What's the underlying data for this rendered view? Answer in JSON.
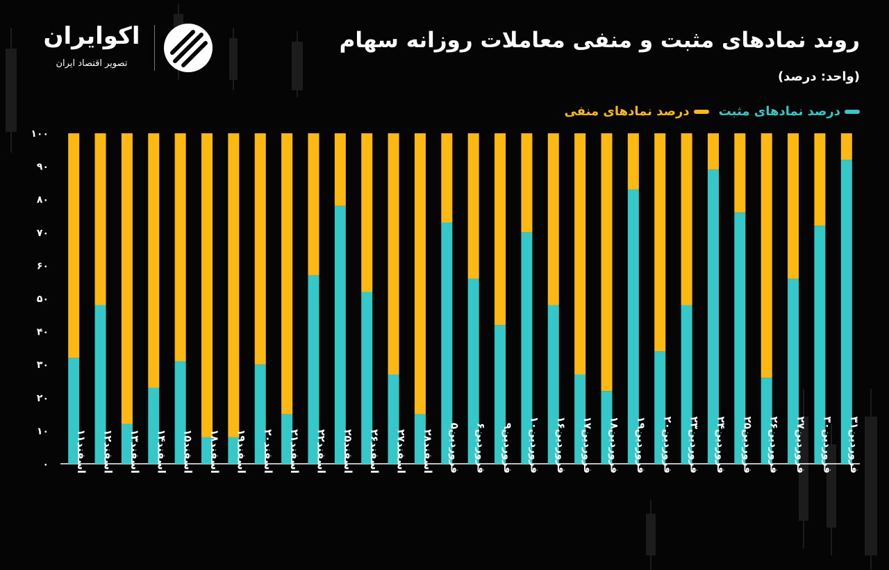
{
  "title": "روند نمادهای مثبت و منفی معاملات روزانه سهام",
  "unit": "(واحد: درصد)",
  "brand": {
    "name": "اکوایران",
    "tagline": "تصویر اقتصاد ایران"
  },
  "colors": {
    "positive": "#36C8C8",
    "negative": "#FDB913",
    "background": "#050505",
    "text": "#ffffff"
  },
  "chart_data": {
    "type": "bar",
    "stacked": true,
    "categories": [
      "اسفند۱۱",
      "اسفند۱۲",
      "اسفند۱۳",
      "اسفند۱۴",
      "اسفند۱۵",
      "اسفند۱۸",
      "اسفند۱۹",
      "اسفند۲۰",
      "اسفند۲۱",
      "اسفند۲۲",
      "اسفند۲۵",
      "اسفند۲۶",
      "اسفند۲۷",
      "اسفند۲۸",
      "فروردین۵",
      "فروردین۶",
      "فروردین۹",
      "فروردین۱۰",
      "فروردین۱۶",
      "فروردین۱۷",
      "فروردین۱۸",
      "فروردین۱۹",
      "فروردین۲۰",
      "فروردین۲۳",
      "فروردین۲۴",
      "فروردین۲۵",
      "فروردین۲۶",
      "فروردین۲۷",
      "فروردین۳۰",
      "فروردین۳۱"
    ],
    "series": [
      {
        "name": "درصد نمادهای مثبت",
        "values": [
          32,
          48,
          12,
          23,
          31,
          8,
          8,
          30,
          15,
          57,
          78,
          52,
          27,
          15,
          73,
          56,
          42,
          70,
          48,
          27,
          22,
          83,
          34,
          48,
          89,
          76,
          26,
          56,
          72,
          92
        ]
      },
      {
        "name": "درصد نمادهای منفی",
        "values": [
          68,
          52,
          88,
          77,
          69,
          92,
          92,
          70,
          85,
          43,
          22,
          48,
          73,
          85,
          27,
          44,
          58,
          30,
          52,
          73,
          78,
          17,
          66,
          52,
          11,
          24,
          74,
          44,
          28,
          8
        ]
      }
    ],
    "yticks": [
      "۰",
      "۱۰",
      "۲۰",
      "۳۰",
      "۴۰",
      "۵۰",
      "۶۰",
      "۷۰",
      "۸۰",
      "۹۰",
      "۱۰۰"
    ],
    "ylim": [
      0,
      100
    ],
    "legend": "top-right",
    "grid": false
  }
}
